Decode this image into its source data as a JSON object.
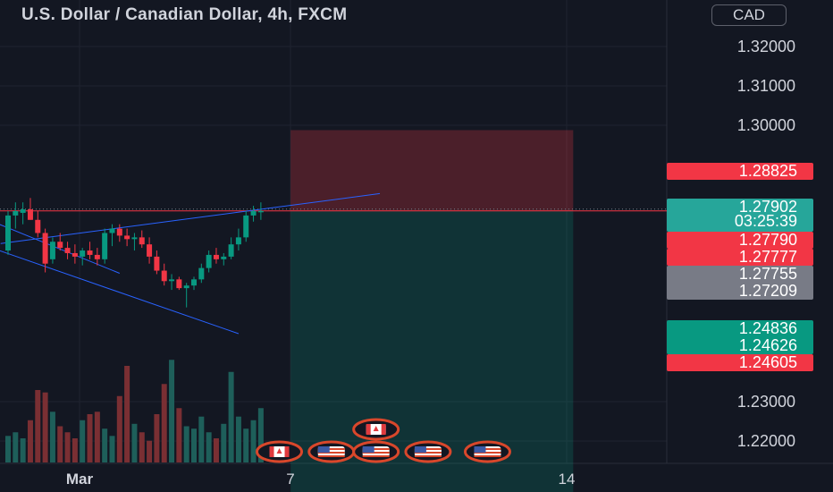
{
  "header": {
    "title": "U.S. Dollar / Canadian Dollar, 4h, FXCM",
    "currency": "CAD"
  },
  "price_axis": {
    "ticks": [
      "1.32000",
      "1.31000",
      "1.30000",
      "1.23000",
      "1.22000"
    ]
  },
  "time_axis": {
    "ticks": [
      "Mar",
      "7",
      "14"
    ]
  },
  "price_labels": [
    {
      "text": "1.28825",
      "color": "#f23645"
    },
    {
      "text": "1.27902",
      "color": "#26a69a"
    },
    {
      "text": "03:25:39",
      "color": "#26a69a"
    },
    {
      "text": "1.27790",
      "color": "#f23645"
    },
    {
      "text": "1.27777",
      "color": "#f23645"
    },
    {
      "text": "1.27755",
      "color": "#787b86"
    },
    {
      "text": "1.27209",
      "color": "#787b86"
    },
    {
      "text": "1.24836",
      "color": "#089981"
    },
    {
      "text": "1.24626",
      "color": "#089981"
    },
    {
      "text": "1.24605",
      "color": "#f23645"
    }
  ],
  "chart_data": {
    "type": "candlestick",
    "title": "U.S. Dollar / Canadian Dollar, 4h, FXCM",
    "y_axis_unit": "CAD",
    "ylim": [
      1.215,
      1.3255
    ],
    "candles": [
      {
        "o": 1.2745,
        "h": 1.279,
        "l": 1.274,
        "c": 1.2785
      },
      {
        "o": 1.2785,
        "h": 1.28,
        "l": 1.277,
        "c": 1.279
      },
      {
        "o": 1.2788,
        "h": 1.28,
        "l": 1.2775,
        "c": 1.2792
      },
      {
        "o": 1.2792,
        "h": 1.2805,
        "l": 1.278,
        "c": 1.278
      },
      {
        "o": 1.278,
        "h": 1.279,
        "l": 1.276,
        "c": 1.2765
      },
      {
        "o": 1.2765,
        "h": 1.277,
        "l": 1.272,
        "c": 1.273
      },
      {
        "o": 1.2735,
        "h": 1.276,
        "l": 1.273,
        "c": 1.2755
      },
      {
        "o": 1.2755,
        "h": 1.2765,
        "l": 1.2745,
        "c": 1.2748
      },
      {
        "o": 1.2748,
        "h": 1.2755,
        "l": 1.2735,
        "c": 1.2742
      },
      {
        "o": 1.2742,
        "h": 1.2752,
        "l": 1.273,
        "c": 1.2738
      },
      {
        "o": 1.2738,
        "h": 1.2748,
        "l": 1.2728,
        "c": 1.2745
      },
      {
        "o": 1.2745,
        "h": 1.2755,
        "l": 1.2735,
        "c": 1.274
      },
      {
        "o": 1.274,
        "h": 1.2748,
        "l": 1.2728,
        "c": 1.2735
      },
      {
        "o": 1.2735,
        "h": 1.277,
        "l": 1.273,
        "c": 1.2765
      },
      {
        "o": 1.2765,
        "h": 1.2775,
        "l": 1.275,
        "c": 1.277
      },
      {
        "o": 1.277,
        "h": 1.2775,
        "l": 1.2755,
        "c": 1.2762
      },
      {
        "o": 1.2762,
        "h": 1.277,
        "l": 1.275,
        "c": 1.2758
      },
      {
        "o": 1.2758,
        "h": 1.2765,
        "l": 1.2745,
        "c": 1.276
      },
      {
        "o": 1.276,
        "h": 1.2768,
        "l": 1.2748,
        "c": 1.2752
      },
      {
        "o": 1.2752,
        "h": 1.276,
        "l": 1.273,
        "c": 1.2738
      },
      {
        "o": 1.2738,
        "h": 1.2745,
        "l": 1.2718,
        "c": 1.2722
      },
      {
        "o": 1.2722,
        "h": 1.273,
        "l": 1.2705,
        "c": 1.271
      },
      {
        "o": 1.271,
        "h": 1.2718,
        "l": 1.27,
        "c": 1.2712
      },
      {
        "o": 1.2712,
        "h": 1.2715,
        "l": 1.27,
        "c": 1.2702
      },
      {
        "o": 1.2702,
        "h": 1.2708,
        "l": 1.268,
        "c": 1.2705
      },
      {
        "o": 1.2705,
        "h": 1.2715,
        "l": 1.27,
        "c": 1.2712
      },
      {
        "o": 1.2712,
        "h": 1.273,
        "l": 1.2708,
        "c": 1.2725
      },
      {
        "o": 1.2725,
        "h": 1.2745,
        "l": 1.272,
        "c": 1.274
      },
      {
        "o": 1.274,
        "h": 1.2748,
        "l": 1.273,
        "c": 1.2735
      },
      {
        "o": 1.2735,
        "h": 1.2742,
        "l": 1.2728,
        "c": 1.2738
      },
      {
        "o": 1.2738,
        "h": 1.276,
        "l": 1.2735,
        "c": 1.2752
      },
      {
        "o": 1.2752,
        "h": 1.277,
        "l": 1.2745,
        "c": 1.276
      },
      {
        "o": 1.276,
        "h": 1.279,
        "l": 1.2755,
        "c": 1.2785
      },
      {
        "o": 1.2785,
        "h": 1.2796,
        "l": 1.2778,
        "c": 1.279
      },
      {
        "o": 1.279,
        "h": 1.28,
        "l": 1.278,
        "c": 1.27902
      }
    ],
    "volume": [
      0.22,
      0.25,
      0.2,
      0.35,
      0.6,
      0.58,
      0.42,
      0.3,
      0.25,
      0.2,
      0.35,
      0.4,
      0.42,
      0.28,
      0.22,
      0.55,
      0.8,
      0.32,
      0.25,
      0.18,
      0.4,
      0.65,
      0.85,
      0.45,
      0.3,
      0.28,
      0.38,
      0.25,
      0.2,
      0.32,
      0.75,
      0.38,
      0.28,
      0.35,
      0.45
    ],
    "trendlines": [
      {
        "name": "upper-channel",
        "from": [
          -1.2,
          1.2775
        ],
        "to": [
          15.0,
          1.2719
        ]
      },
      {
        "name": "lower-channel",
        "from": [
          -1.2,
          1.2745
        ],
        "to": [
          31.0,
          1.265
        ]
      },
      {
        "name": "rising-line",
        "from": [
          -1.0,
          1.2753
        ],
        "to": [
          50.0,
          1.281
        ]
      }
    ],
    "position_tool": {
      "type": "short",
      "entry": 1.279,
      "stop": 1.28825,
      "target": 1.246,
      "start_index": 38,
      "end_index": 76
    },
    "horizontal_lines": [
      1.27902,
      1.246
    ],
    "events": [
      {
        "kind": "canada",
        "index": 36,
        "row": 0
      },
      {
        "kind": "us",
        "index": 43,
        "row": 0
      },
      {
        "kind": "us",
        "index": 49,
        "row": 0
      },
      {
        "kind": "canada",
        "index": 49,
        "row": 1
      },
      {
        "kind": "us",
        "index": 56,
        "row": 0
      },
      {
        "kind": "us",
        "index": 64,
        "row": 0
      }
    ]
  }
}
